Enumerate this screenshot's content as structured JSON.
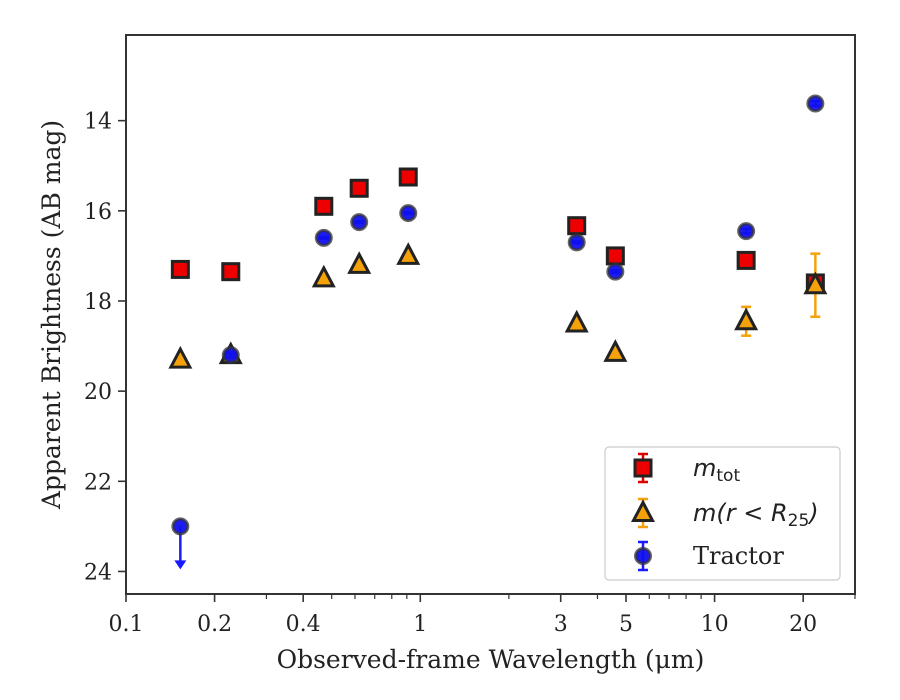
{
  "chart_data": {
    "type": "scatter",
    "xlabel": "Observed-frame Wavelength (μm)",
    "ylabel": "Apparent Brightness (AB mag)",
    "x_scale": "log",
    "xlim": [
      0.1,
      30
    ],
    "ylim": [
      24.5,
      12.1
    ],
    "y_inverted": true,
    "x_ticks": [
      0.1,
      0.2,
      0.4,
      1,
      3,
      5,
      10,
      20
    ],
    "x_tick_labels": [
      "0.1",
      "0.2",
      "0.4",
      "1",
      "3",
      "5",
      "10",
      "20"
    ],
    "y_ticks": [
      14,
      16,
      18,
      20,
      22,
      24
    ],
    "y_tick_labels": [
      "14",
      "16",
      "18",
      "20",
      "22",
      "24"
    ],
    "grid": false,
    "legend_position": "lower-right",
    "series": [
      {
        "name": "m_tot",
        "legend_label_main": "m",
        "legend_label_sub": "tot",
        "marker": "square",
        "face_color": "#ee0000",
        "edge_color": "#222222",
        "error_color": "#dd0000",
        "x": [
          0.153,
          0.227,
          0.47,
          0.62,
          0.91,
          3.4,
          4.6,
          12.8,
          22.0
        ],
        "y": [
          17.3,
          17.35,
          15.9,
          15.5,
          15.25,
          16.33,
          17.0,
          17.1,
          17.6
        ],
        "yerr": [
          0.03,
          0.03,
          0.02,
          0.02,
          0.02,
          0.02,
          0.03,
          0.08,
          0.12
        ]
      },
      {
        "name": "m(r < R25)",
        "legend_label_main": "m(r < R",
        "legend_label_sub": "25",
        "legend_label_tail": ")",
        "marker": "triangle",
        "face_color": "#f5a20a",
        "edge_color": "#222222",
        "error_color": "#f5a20a",
        "x": [
          0.153,
          0.227,
          0.47,
          0.62,
          0.91,
          3.4,
          4.6,
          12.8,
          22.0
        ],
        "y": [
          19.3,
          19.2,
          17.5,
          17.2,
          17.0,
          18.5,
          19.15,
          18.45,
          17.65
        ],
        "yerr": [
          0.05,
          0.05,
          0.03,
          0.03,
          0.03,
          0.03,
          0.05,
          0.32,
          0.7
        ]
      },
      {
        "name": "Tractor",
        "marker": "circle",
        "face_color": "#1010ee",
        "edge_color": "#333333",
        "error_color": "#1a1aff",
        "x": [
          0.153,
          0.227,
          0.47,
          0.62,
          0.91,
          3.4,
          4.6,
          12.8,
          22.0
        ],
        "y": [
          23.0,
          19.2,
          16.6,
          16.25,
          16.05,
          16.7,
          17.35,
          16.45,
          13.62
        ],
        "yerr": [
          0.0,
          0.05,
          0.02,
          0.02,
          0.02,
          0.02,
          0.03,
          0.05,
          0.05
        ],
        "upper_limit": [
          true,
          false,
          false,
          false,
          false,
          false,
          false,
          false,
          false
        ]
      }
    ]
  }
}
